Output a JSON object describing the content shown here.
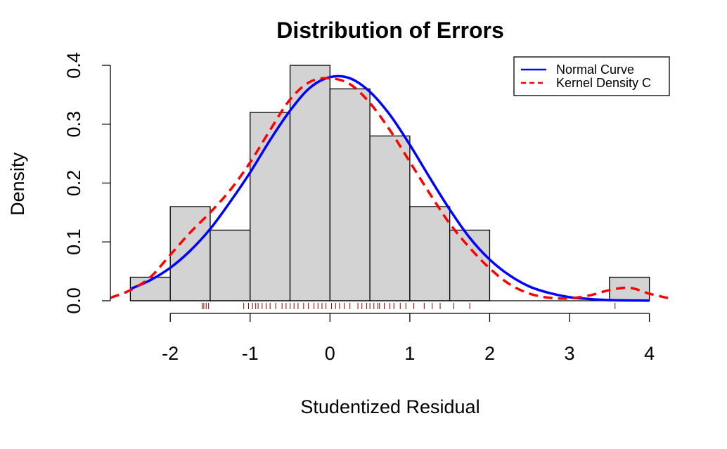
{
  "chart_data": {
    "type": "bar",
    "title": "Distribution of Errors",
    "xlabel": "Studentized Residual",
    "ylabel": "Density",
    "xlim": [
      -2.75,
      4.25
    ],
    "ylim": [
      0,
      0.4
    ],
    "x_ticks": [
      "-2",
      "-1",
      "0",
      "1",
      "2",
      "3",
      "4"
    ],
    "y_ticks": [
      "0.0",
      "0.1",
      "0.2",
      "0.3",
      "0.4"
    ],
    "histogram": {
      "bins": [
        {
          "from": -2.5,
          "to": -2.0,
          "density": 0.04
        },
        {
          "from": -2.0,
          "to": -1.5,
          "density": 0.16
        },
        {
          "from": -1.5,
          "to": -1.0,
          "density": 0.12
        },
        {
          "from": -1.0,
          "to": -0.5,
          "density": 0.32
        },
        {
          "from": -0.5,
          "to": 0.0,
          "density": 0.4
        },
        {
          "from": 0.0,
          "to": 0.5,
          "density": 0.36
        },
        {
          "from": 0.5,
          "to": 1.0,
          "density": 0.28
        },
        {
          "from": 1.0,
          "to": 1.5,
          "density": 0.16
        },
        {
          "from": 1.5,
          "to": 2.0,
          "density": 0.12
        },
        {
          "from": 2.0,
          "to": 2.5,
          "density": 0.0
        },
        {
          "from": 2.5,
          "to": 3.0,
          "density": 0.0
        },
        {
          "from": 3.0,
          "to": 3.5,
          "density": 0.0
        },
        {
          "from": 3.5,
          "to": 4.0,
          "density": 0.04
        }
      ],
      "fill": "#d3d3d3"
    },
    "series": [
      {
        "name": "Normal Curve",
        "type": "line",
        "color": "#0000ff",
        "dash": "solid",
        "x": [
          -2.5,
          -2.25,
          -2.0,
          -1.75,
          -1.5,
          -1.25,
          -1.0,
          -0.75,
          -0.5,
          -0.25,
          0.0,
          0.25,
          0.5,
          0.75,
          1.0,
          1.25,
          1.5,
          1.75,
          2.0,
          2.25,
          2.5,
          2.75,
          3.0,
          3.25,
          3.5,
          3.75,
          4.0
        ],
        "y": [
          0.02,
          0.035,
          0.056,
          0.085,
          0.122,
          0.168,
          0.218,
          0.273,
          0.323,
          0.362,
          0.38,
          0.378,
          0.355,
          0.316,
          0.265,
          0.209,
          0.155,
          0.107,
          0.07,
          0.043,
          0.024,
          0.013,
          0.006,
          0.003,
          0.001,
          0.0005,
          0.0002
        ]
      },
      {
        "name": "Kernel Density C",
        "type": "line",
        "color": "#ff0000",
        "dash": "dashed",
        "x": [
          -2.75,
          -2.5,
          -2.25,
          -2.0,
          -1.75,
          -1.5,
          -1.25,
          -1.0,
          -0.75,
          -0.5,
          -0.25,
          0.0,
          0.25,
          0.5,
          0.75,
          1.0,
          1.25,
          1.5,
          1.75,
          2.0,
          2.25,
          2.5,
          2.75,
          3.0,
          3.25,
          3.5,
          3.75,
          4.0,
          4.25
        ],
        "y": [
          0.005,
          0.018,
          0.04,
          0.078,
          0.116,
          0.15,
          0.188,
          0.235,
          0.29,
          0.342,
          0.372,
          0.378,
          0.368,
          0.336,
          0.29,
          0.236,
          0.182,
          0.131,
          0.09,
          0.055,
          0.028,
          0.012,
          0.005,
          0.004,
          0.009,
          0.018,
          0.022,
          0.012,
          0.004
        ]
      }
    ],
    "rug": {
      "color": "#8b0000",
      "x": [
        -1.6,
        -1.58,
        -1.55,
        -1.52,
        -1.08,
        -1.02,
        -0.97,
        -0.93,
        -0.9,
        -0.85,
        -0.8,
        -0.75,
        -0.68,
        -0.6,
        -0.55,
        -0.5,
        -0.45,
        -0.4,
        -0.33,
        -0.27,
        -0.2,
        -0.15,
        -0.1,
        -0.05,
        0.02,
        0.07,
        0.12,
        0.18,
        0.25,
        0.35,
        0.4,
        0.46,
        0.5,
        0.55,
        0.6,
        0.62,
        0.68,
        0.75,
        0.8,
        0.88,
        0.95,
        1.05,
        1.18,
        1.28,
        1.38,
        1.55,
        1.75,
        3.57
      ]
    },
    "legend": {
      "placement": "top-right",
      "entries": [
        {
          "label": "Normal Curve",
          "color": "#0000ff",
          "dash": "solid"
        },
        {
          "label": "Kernel Density C",
          "color": "#ff0000",
          "dash": "dashed"
        }
      ]
    },
    "grid": false
  }
}
